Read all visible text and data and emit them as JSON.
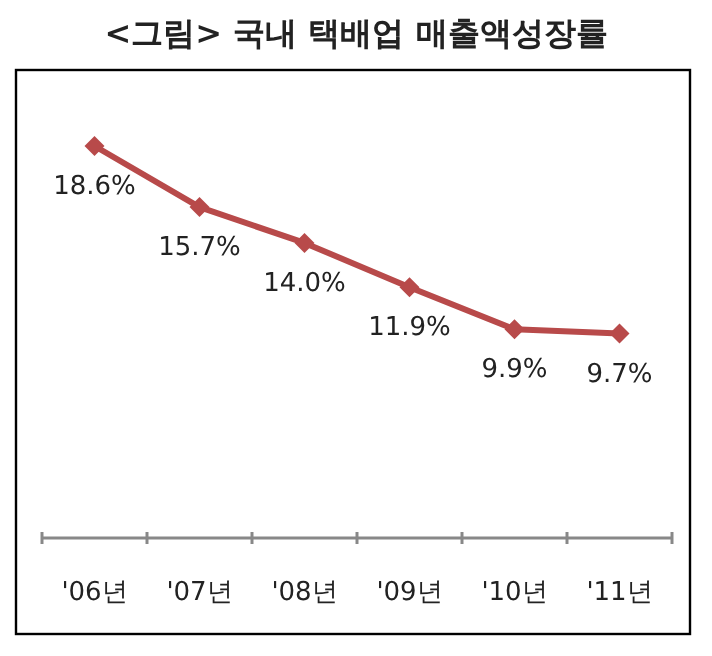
{
  "chart_data": {
    "type": "line",
    "title": "<그림> 국내 택배업 매출액성장률",
    "categories": [
      "'06년",
      "'07년",
      "'08년",
      "'09년",
      "'10년",
      "'11년"
    ],
    "series": [
      {
        "color": "#b84a4a",
        "values": [
          18.6,
          15.7,
          14.0,
          11.9,
          9.9,
          9.7
        ],
        "value_labels": [
          "18.6%",
          "15.7%",
          "14.0%",
          "11.9%",
          "9.9%",
          "9.7%"
        ]
      }
    ],
    "marker": "diamond",
    "line_style": "solid"
  }
}
